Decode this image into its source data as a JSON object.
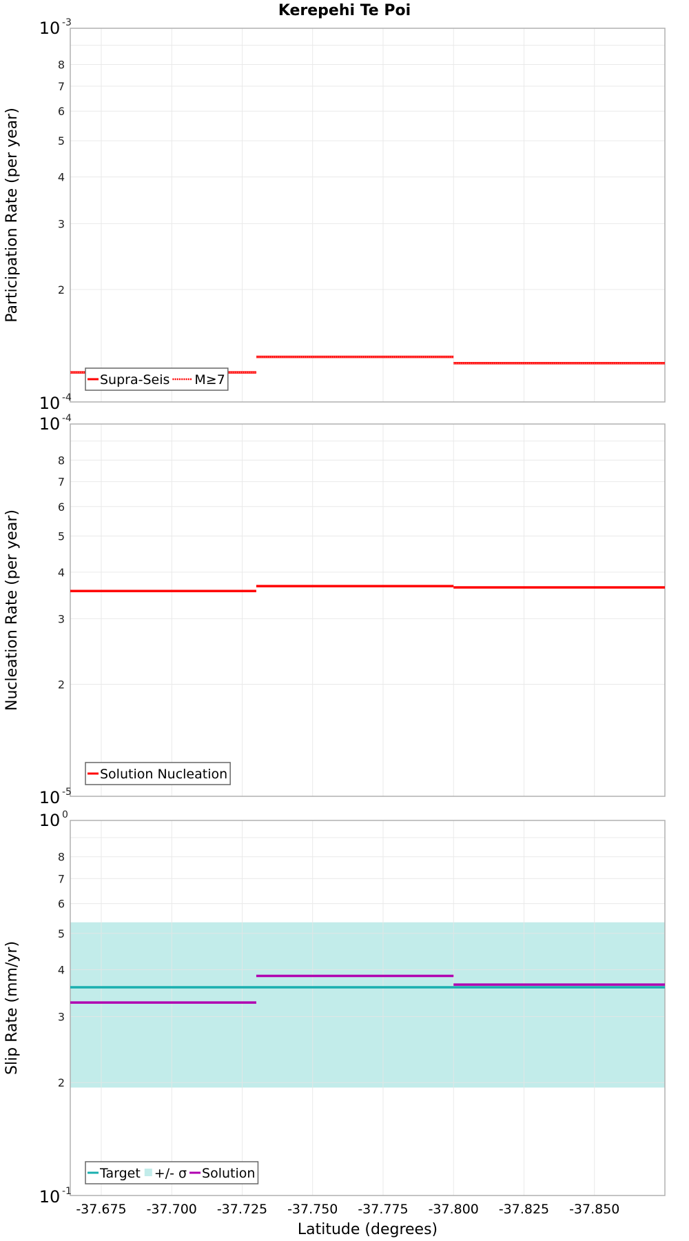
{
  "title": "Kerepehi Te Poi",
  "x_axis": {
    "label": "Latitude (degrees)",
    "ticks": [
      "-37.675",
      "-37.700",
      "-37.725",
      "-37.750",
      "-37.775",
      "-37.800",
      "-37.825",
      "-37.850"
    ]
  },
  "panels": [
    {
      "ylabel": "Participation Rate (per year)",
      "top_label": {
        "base": "10",
        "exp": "-3"
      },
      "bottom_label": {
        "base": "10",
        "exp": "-4"
      },
      "minor_ticks": [
        "2",
        "3",
        "4",
        "5",
        "6",
        "7",
        "8"
      ],
      "legend": [
        {
          "label": "Supra-Seis",
          "style": "solid",
          "color": "#ff0000"
        },
        {
          "label": "M≥7",
          "style": "dotted",
          "color": "#ff0000"
        }
      ]
    },
    {
      "ylabel": "Nucleation Rate (per year)",
      "top_label": {
        "base": "10",
        "exp": "-4"
      },
      "bottom_label": {
        "base": "10",
        "exp": "-5"
      },
      "minor_ticks": [
        "2",
        "3",
        "4",
        "5",
        "6",
        "7",
        "8"
      ],
      "legend": [
        {
          "label": "Solution Nucleation",
          "style": "solid",
          "color": "#ff0000"
        }
      ]
    },
    {
      "ylabel": "Slip Rate (mm/yr)",
      "top_label": {
        "base": "10",
        "exp": "0"
      },
      "bottom_label": {
        "base": "10",
        "exp": "-1"
      },
      "minor_ticks": [
        "2",
        "3",
        "4",
        "5",
        "6",
        "7",
        "8"
      ],
      "legend": [
        {
          "label": "Target",
          "style": "solid",
          "color": "#1aafaf"
        },
        {
          "label": "+/- σ",
          "style": "box",
          "color": "#c2ecea"
        },
        {
          "label": "Solution",
          "style": "solid",
          "color": "#b000b0"
        }
      ]
    }
  ],
  "chart_data": [
    {
      "type": "line",
      "title": "Kerepehi Te Poi",
      "xlabel": "Latitude (degrees)",
      "ylabel": "Participation Rate (per year)",
      "yscale": "log",
      "xlim": [
        -37.664,
        -37.875
      ],
      "ylim": [
        0.0001,
        0.001
      ],
      "grid": true,
      "legend_position": "lower left",
      "x_ticks": [
        -37.675,
        -37.7,
        -37.725,
        -37.75,
        -37.775,
        -37.8,
        -37.825,
        -37.85
      ],
      "series": [
        {
          "name": "Supra-Seis",
          "style": "solid",
          "color": "#ff0000",
          "segments": [
            {
              "x": [
                -37.664,
                -37.73
              ],
              "y": 0.00012
            },
            {
              "x": [
                -37.73,
                -37.8
              ],
              "y": 0.000132
            },
            {
              "x": [
                -37.8,
                -37.875
              ],
              "y": 0.000127
            }
          ]
        },
        {
          "name": "M≥7",
          "style": "dotted",
          "color": "#ff0000",
          "segments": [
            {
              "x": [
                -37.664,
                -37.73
              ],
              "y": 0.00012
            },
            {
              "x": [
                -37.73,
                -37.8
              ],
              "y": 0.000132
            },
            {
              "x": [
                -37.8,
                -37.875
              ],
              "y": 0.000127
            }
          ]
        }
      ]
    },
    {
      "type": "line",
      "xlabel": "Latitude (degrees)",
      "ylabel": "Nucleation Rate (per year)",
      "yscale": "log",
      "xlim": [
        -37.664,
        -37.875
      ],
      "ylim": [
        1e-05,
        0.0001
      ],
      "grid": true,
      "legend_position": "lower left",
      "series": [
        {
          "name": "Solution Nucleation",
          "style": "solid",
          "color": "#ff0000",
          "segments": [
            {
              "x": [
                -37.664,
                -37.73
              ],
              "y": 3.56e-05
            },
            {
              "x": [
                -37.73,
                -37.8
              ],
              "y": 3.67e-05
            },
            {
              "x": [
                -37.8,
                -37.875
              ],
              "y": 3.64e-05
            }
          ]
        }
      ]
    },
    {
      "type": "line",
      "xlabel": "Latitude (degrees)",
      "ylabel": "Slip Rate (mm/yr)",
      "yscale": "log",
      "xlim": [
        -37.664,
        -37.875
      ],
      "ylim": [
        0.1,
        1.0
      ],
      "grid": true,
      "legend_position": "lower left",
      "series": [
        {
          "name": "Target",
          "style": "solid",
          "color": "#1aafaf",
          "segments": [
            {
              "x": [
                -37.664,
                -37.875
              ],
              "y": 0.359
            }
          ]
        },
        {
          "name": "+/- σ",
          "style": "band",
          "color": "#c2ecea",
          "segments": [
            {
              "x": [
                -37.664,
                -37.875
              ],
              "y_low": 0.194,
              "y_high": 0.535
            }
          ]
        },
        {
          "name": "Solution",
          "style": "solid",
          "color": "#b000b0",
          "segments": [
            {
              "x": [
                -37.664,
                -37.73
              ],
              "y": 0.327
            },
            {
              "x": [
                -37.73,
                -37.8
              ],
              "y": 0.385
            },
            {
              "x": [
                -37.8,
                -37.875
              ],
              "y": 0.365
            }
          ]
        }
      ]
    }
  ]
}
